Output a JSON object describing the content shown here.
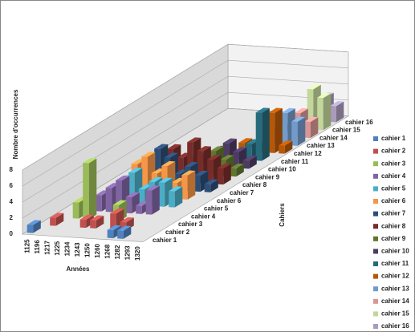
{
  "chart_data": {
    "type": "bar3d",
    "y_label": "Nombre d'occurrences",
    "x_label": "Années",
    "z_label": "Cahiers",
    "categories": [
      "1125",
      "1196",
      "1217",
      "1225",
      "1234",
      "1243",
      "1250",
      "1260",
      "1268",
      "1282",
      "1293",
      "1320"
    ],
    "ylim": [
      0,
      8
    ],
    "yticks": [
      0,
      2,
      4,
      6,
      8
    ],
    "grid": true,
    "legend": "right",
    "series": [
      {
        "name": "cahier 1",
        "color": "#4f81bd",
        "values": [
          1,
          null,
          null,
          null,
          null,
          null,
          null,
          null,
          1,
          1,
          null,
          null
        ]
      },
      {
        "name": "cahier 2",
        "color": "#c0504d",
        "values": [
          null,
          1,
          null,
          null,
          1,
          1,
          null,
          2,
          1,
          null,
          null,
          null
        ]
      },
      {
        "name": "cahier 3",
        "color": "#9bbb59",
        "values": [
          null,
          null,
          2,
          7,
          null,
          null,
          2,
          null,
          null,
          null,
          null,
          null
        ]
      },
      {
        "name": "cahier 4",
        "color": "#8064a2",
        "values": [
          null,
          null,
          null,
          2,
          3,
          4,
          2,
          1,
          3,
          null,
          null,
          null
        ]
      },
      {
        "name": "cahier 5",
        "color": "#4bacc6",
        "values": [
          null,
          null,
          null,
          null,
          3,
          4,
          2,
          3,
          3,
          2,
          null,
          null
        ]
      },
      {
        "name": "cahier 6",
        "color": "#f79646",
        "values": [
          null,
          null,
          null,
          null,
          4,
          5,
          3,
          4,
          2,
          3,
          null,
          null
        ]
      },
      {
        "name": "cahier 7",
        "color": "#2c4d75",
        "values": [
          null,
          null,
          null,
          null,
          null,
          5,
          4,
          2,
          3,
          2,
          1,
          null
        ]
      },
      {
        "name": "cahier 8",
        "color": "#772c2a",
        "values": [
          null,
          null,
          null,
          null,
          null,
          4,
          3,
          5,
          4,
          3,
          2,
          null
        ]
      },
      {
        "name": "cahier 9",
        "color": "#5f7530",
        "values": [
          null,
          null,
          null,
          null,
          null,
          null,
          2,
          1,
          3,
          2,
          1,
          null
        ]
      },
      {
        "name": "cahier 10",
        "color": "#4d3b62",
        "values": [
          null,
          null,
          null,
          null,
          null,
          null,
          null,
          2,
          3,
          2,
          1,
          null
        ]
      },
      {
        "name": "cahier 11",
        "color": "#276a7c",
        "values": [
          null,
          null,
          null,
          null,
          null,
          null,
          null,
          null,
          1,
          2,
          6,
          null
        ]
      },
      {
        "name": "cahier 12",
        "color": "#b65708",
        "values": [
          null,
          null,
          null,
          null,
          null,
          null,
          null,
          1,
          null,
          1,
          5,
          1
        ]
      },
      {
        "name": "cahier 13",
        "color": "#729aca",
        "values": [
          null,
          null,
          null,
          null,
          null,
          null,
          null,
          null,
          null,
          2,
          4,
          3
        ]
      },
      {
        "name": "cahier 14",
        "color": "#d99694",
        "values": [
          null,
          null,
          null,
          null,
          null,
          null,
          null,
          null,
          1,
          null,
          3,
          2
        ]
      },
      {
        "name": "cahier 15",
        "color": "#c3d69b",
        "values": [
          null,
          null,
          null,
          null,
          null,
          null,
          null,
          null,
          null,
          2,
          5,
          4
        ]
      },
      {
        "name": "cahier 16",
        "color": "#a99bbd",
        "values": [
          null,
          null,
          null,
          null,
          null,
          null,
          null,
          null,
          null,
          1,
          3,
          2
        ]
      }
    ]
  }
}
